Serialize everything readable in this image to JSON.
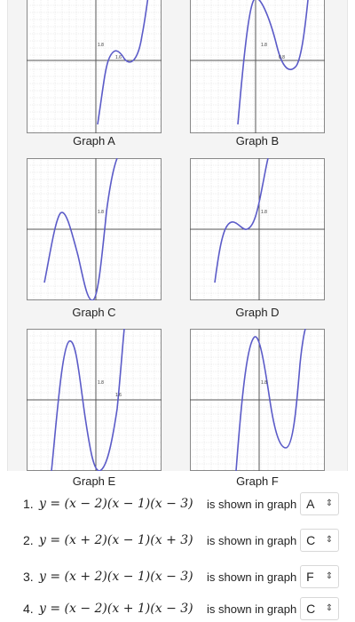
{
  "graphs": [
    {
      "label": "Graph A",
      "curve": "wiggle-up-low",
      "tick_y": "1.8",
      "tick_x": "1.6"
    },
    {
      "label": "Graph B",
      "curve": "dip-right",
      "tick_y": "1.8",
      "tick_x": "0.8"
    },
    {
      "label": "Graph C",
      "curve": "hump-left",
      "tick_y": "1.8",
      "tick_x": ""
    },
    {
      "label": "Graph D",
      "curve": "wiggle-up-mid",
      "tick_y": "1.8",
      "tick_x": ""
    },
    {
      "label": "Graph E",
      "curve": "hump-left-tall",
      "tick_y": "1.8",
      "tick_x": "1.6"
    },
    {
      "label": "Graph F",
      "curve": "dip-right-deep",
      "tick_y": "1.8",
      "tick_x": ""
    }
  ],
  "questions": [
    {
      "number": "1.",
      "equation": "y = (x − 2)(x − 1)(x − 3)",
      "text": "is shown in graph",
      "answer": "A"
    },
    {
      "number": "2.",
      "equation": "y = (x + 2)(x − 1)(x + 3)",
      "text": "is shown in graph",
      "answer": "C"
    },
    {
      "number": "3.",
      "equation": "y = (x + 2)(x − 1)(x − 3)",
      "text": "is shown in graph",
      "answer": "F"
    },
    {
      "number": "4.",
      "equation": "y = (x − 2)(x + 1)(x − 3)",
      "text": "is shown in graph",
      "answer": "C"
    }
  ],
  "colors": {
    "curve": "#5b5bc8",
    "grid": "#dcdcdc",
    "axis": "#555555"
  }
}
